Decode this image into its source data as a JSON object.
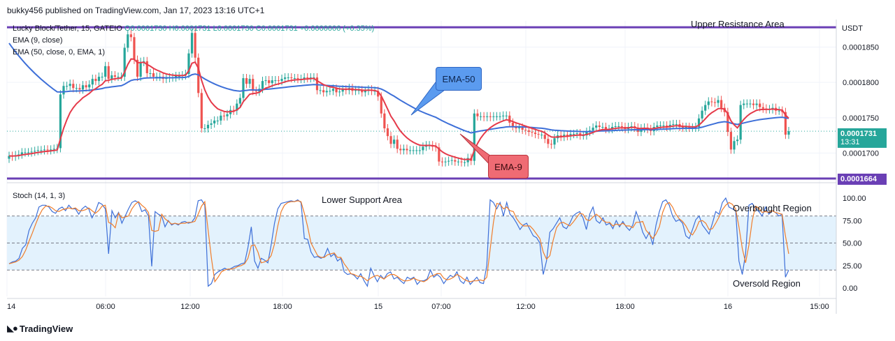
{
  "header": {
    "publisher": "bukky456 published on TradingView.com, Jan 17, 2023 13:16 UTC+1",
    "ohlc_line": "Lucky Block/Tether, 15, GATEIO",
    "ohlc_values": "O0.0001730  H0.0001731  L0.0001730  C0.0001731  +0.0000006 (+0.35%)",
    "ema9_label": "EMA (9, close)",
    "ema50_label": "EMA (50, close, 0, EMA, 1)",
    "stoch_label": "Stoch (14, 1, 3)",
    "currency": "USDT",
    "brand": "TradingView"
  },
  "annotations": {
    "upper": "Upper Resistance Area",
    "lower": "Lower Support Area",
    "overbought": "Overbought Region",
    "oversold": "Oversold Region",
    "ema50": "EMA-50",
    "ema9": "EMA-9"
  },
  "price_tags": {
    "last": "0.0001731",
    "countdown": "13:31",
    "support": "0.0001664"
  },
  "colors": {
    "up": "#26a69a",
    "down": "#ef5350",
    "ema9": "#e53a4a",
    "ema50": "#3d6fd8",
    "level": "#6a3fb5",
    "stochK": "#3d6fd8",
    "stochD": "#f07d2a",
    "band": "#e3f2fd"
  },
  "chart_data": [
    {
      "type": "candlestick",
      "title": "Lucky Block/Tether, 15, GATEIO",
      "ylabel": "USDT",
      "ylim": [
        0.0001662,
        0.0001887
      ],
      "y_ticks": [
        "0.0001850",
        "0.0001800",
        "0.0001750",
        "0.0001700"
      ],
      "x_ticks": [
        "14",
        "06:00",
        "12:00",
        "18:00",
        "15",
        "07:00",
        "12:00",
        "18:00",
        "16",
        "15:00"
      ],
      "levels": {
        "resistance": 0.0001878,
        "support": 0.0001664
      },
      "close": [
        0.0001696,
        0.0001695,
        0.0001697,
        0.0001698,
        0.0001701,
        0.0001701,
        0.0001701,
        0.0001702,
        0.0001703,
        0.0001704,
        0.0001704,
        0.0001705,
        0.0001704,
        0.0001705,
        0.0001706,
        0.0001707,
        0.0001783,
        0.0001795,
        0.0001795,
        0.0001798,
        0.0001792,
        0.0001792,
        0.000179,
        0.0001796,
        0.0001793,
        0.0001797,
        0.0001805,
        0.0001802,
        0.0001808,
        0.0001808,
        0.0001823,
        0.0001805,
        0.000181,
        0.0001808,
        0.0001808,
        0.0001808,
        0.0001849,
        0.0001868,
        0.0001864,
        0.0001832,
        0.0001808,
        0.0001829,
        0.000183,
        0.0001813,
        0.0001813,
        0.0001808,
        0.0001808,
        0.0001808,
        0.0001805,
        0.0001806,
        0.0001807,
        0.0001807,
        0.0001809,
        0.0001809,
        0.000181,
        0.0001812,
        0.0001841,
        0.000187,
        0.0001835,
        0.0001785,
        0.0001735,
        0.0001735,
        0.000174,
        0.0001742,
        0.0001746,
        0.0001746,
        0.0001753,
        0.0001752,
        0.0001755,
        0.0001761,
        0.000176,
        0.000177,
        0.0001778,
        0.0001806,
        0.0001798,
        0.0001805,
        0.0001788,
        0.0001787,
        0.0001791,
        0.0001802,
        0.0001803,
        0.0001799,
        0.0001803,
        0.0001803,
        0.0001802,
        0.0001805,
        0.0001807,
        0.0001807,
        0.0001806,
        0.0001806,
        0.0001805,
        0.0001805,
        0.0001807,
        0.0001806,
        0.0001807,
        0.0001807,
        0.0001789,
        0.0001789,
        0.0001786,
        0.0001788,
        0.0001788,
        0.0001791,
        0.0001786,
        0.0001787,
        0.000179,
        0.0001789,
        0.0001792,
        0.0001788,
        0.0001789,
        0.0001789,
        0.0001786,
        0.0001788,
        0.000179,
        0.0001788,
        0.0001788,
        0.000178,
        0.0001756,
        0.0001735,
        0.0001724,
        0.0001713,
        0.0001719,
        0.0001706,
        0.0001704,
        0.0001706,
        0.0001704,
        0.0001704,
        0.0001704,
        0.0001704,
        0.0001704,
        0.0001709,
        0.0001711,
        0.0001711,
        0.0001709,
        0.0001708,
        0.0001688,
        0.0001687,
        0.0001688,
        0.0001689,
        0.000169,
        0.0001688,
        0.0001688,
        0.0001687,
        0.0001687,
        0.0001693,
        0.0001689,
        0.0001756,
        0.0001752,
        0.0001752,
        0.0001751,
        0.0001752,
        0.0001751,
        0.0001752,
        0.0001752,
        0.0001752,
        0.0001753,
        0.0001753,
        0.0001743,
        0.0001738,
        0.0001735,
        0.0001736,
        0.0001733,
        0.0001732,
        0.000173,
        0.0001729,
        0.0001727,
        0.0001726,
        0.0001726,
        0.000172,
        0.0001713,
        0.0001712,
        0.0001721,
        0.0001725,
        0.0001723,
        0.0001726,
        0.0001724,
        0.0001727,
        0.0001727,
        0.0001728,
        0.0001725,
        0.0001725,
        0.000173,
        0.0001732,
        0.0001736,
        0.0001739,
        0.0001737,
        0.0001737,
        0.0001734,
        0.0001734,
        0.0001737,
        0.0001738,
        0.0001738,
        0.0001737,
        0.0001734,
        0.0001737,
        0.0001738,
        0.0001736,
        0.000173,
        0.0001735,
        0.0001736,
        0.0001734,
        0.0001731,
        0.0001737,
        0.0001739,
        0.0001739,
        0.0001739,
        0.0001737,
        0.000174,
        0.0001741,
        0.0001741,
        0.0001737,
        0.0001736,
        0.0001737,
        0.0001736,
        0.0001736,
        0.0001737,
        0.0001749,
        0.000176,
        0.0001768,
        0.0001773,
        0.0001772,
        0.0001771,
        0.0001775,
        0.0001764,
        0.0001758,
        0.000173,
        0.0001705,
        0.0001717,
        0.0001719,
        0.0001768,
        0.000177,
        0.000177,
        0.000177,
        0.0001768,
        0.000177,
        0.0001765,
        0.0001763,
        0.0001762,
        0.0001762,
        0.0001764,
        0.000176,
        0.000176,
        0.0001758,
        0.0001726,
        0.0001731
      ],
      "ema9_last": 0.0001747,
      "ema50_last": 0.0001747
    },
    {
      "type": "line",
      "title": "Stoch (14, 1, 3)",
      "ylim": [
        0,
        100
      ],
      "y_ticks": [
        "100.00",
        "75.00",
        "50.00",
        "25.00",
        "0.00"
      ],
      "bands": {
        "overbought": 80,
        "mid": 50,
        "oversold": 20
      },
      "series": [
        {
          "name": "%K",
          "values": [
            27,
            29,
            30,
            33,
            44,
            48,
            64,
            72,
            78,
            90,
            92,
            92,
            90,
            85,
            83,
            88,
            90,
            86,
            92,
            88,
            88,
            82,
            88,
            91,
            88,
            78,
            85,
            95,
            93,
            88,
            38,
            86,
            78,
            84,
            72,
            80,
            88,
            95,
            97,
            95,
            85,
            87,
            80,
            24,
            85,
            82,
            80,
            68,
            75,
            70,
            72,
            70,
            73,
            74,
            72,
            73,
            78,
            97,
            98,
            92,
            2,
            5,
            15,
            18,
            20,
            22,
            20,
            22,
            24,
            25,
            27,
            28,
            45,
            68,
            30,
            22,
            33,
            31,
            28,
            48,
            72,
            88,
            94,
            95,
            96,
            97,
            96,
            98,
            95,
            55,
            54,
            40,
            34,
            35,
            33,
            35,
            44,
            35,
            38,
            30,
            33,
            18,
            15,
            16,
            14,
            10,
            16,
            8,
            2,
            22,
            14,
            7,
            14,
            10,
            16,
            18,
            10,
            12,
            8,
            5,
            12,
            10,
            12,
            4,
            8,
            8,
            10,
            20,
            12,
            15,
            12,
            5,
            10,
            14,
            12,
            18,
            8,
            5,
            12,
            4,
            8,
            12,
            6,
            5,
            25,
            98,
            95,
            88,
            95,
            80,
            95,
            82,
            78,
            72,
            65,
            70,
            72,
            65,
            58,
            56,
            50,
            15,
            30,
            62,
            66,
            72,
            78,
            68,
            66,
            72,
            80,
            83,
            85,
            78,
            65,
            82,
            90,
            75,
            72,
            78,
            70,
            72,
            66,
            75,
            68,
            74,
            68,
            64,
            70,
            85,
            75,
            62,
            55,
            62,
            48,
            70,
            85,
            96,
            98,
            92,
            80,
            74,
            76,
            72,
            58,
            55,
            65,
            76,
            80,
            70,
            65,
            60,
            72,
            85,
            82,
            95,
            100,
            90,
            88,
            86,
            30,
            15,
            38,
            92,
            94,
            88,
            85,
            80,
            90,
            82,
            86,
            84,
            80,
            82,
            12,
            20
          ],
          "color": "#3d6fd8"
        },
        {
          "name": "%D",
          "values": [
            27,
            28,
            29,
            31,
            35,
            42,
            52,
            61,
            71,
            80,
            87,
            91,
            91,
            89,
            86,
            85,
            87,
            88,
            89,
            88,
            89,
            86,
            86,
            87,
            89,
            86,
            83,
            86,
            91,
            92,
            73,
            71,
            67,
            83,
            78,
            79,
            80,
            88,
            93,
            96,
            92,
            89,
            84,
            64,
            63,
            64,
            82,
            77,
            74,
            71,
            72,
            71,
            72,
            72,
            73,
            73,
            74,
            82,
            91,
            96,
            64,
            33,
            7,
            12,
            18,
            20,
            21,
            21,
            22,
            24,
            25,
            27,
            33,
            47,
            48,
            40,
            28,
            29,
            31,
            36,
            49,
            69,
            85,
            92,
            95,
            96,
            96,
            97,
            96,
            83,
            68,
            50,
            43,
            36,
            34,
            34,
            37,
            38,
            39,
            34,
            34,
            27,
            22,
            16,
            15,
            13,
            13,
            11,
            8,
            11,
            13,
            14,
            12,
            10,
            13,
            15,
            15,
            13,
            10,
            8,
            8,
            9,
            11,
            9,
            8,
            7,
            9,
            13,
            14,
            16,
            16,
            11,
            9,
            10,
            12,
            15,
            13,
            10,
            8,
            7,
            8,
            8,
            9,
            8,
            12,
            43,
            73,
            94,
            93,
            88,
            90,
            86,
            85,
            77,
            72,
            69,
            69,
            69,
            65,
            60,
            55,
            40,
            32,
            36,
            53,
            67,
            72,
            73,
            71,
            69,
            73,
            78,
            83,
            82,
            76,
            75,
            79,
            82,
            79,
            75,
            73,
            73,
            69,
            71,
            70,
            72,
            69,
            69,
            67,
            73,
            73,
            74,
            64,
            60,
            55,
            60,
            68,
            84,
            93,
            95,
            90,
            82,
            77,
            74,
            69,
            62,
            59,
            65,
            74,
            75,
            72,
            65,
            66,
            72,
            79,
            87,
            92,
            95,
            93,
            88,
            68,
            44,
            28,
            48,
            75,
            91,
            89,
            84,
            85,
            84,
            86,
            84,
            83,
            82,
            58,
            38
          ],
          "color": "#f07d2a"
        }
      ]
    }
  ]
}
